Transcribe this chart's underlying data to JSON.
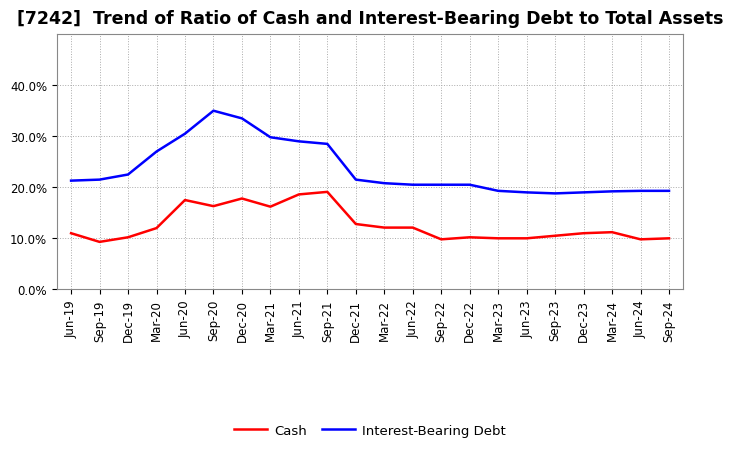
{
  "title": "[7242]  Trend of Ratio of Cash and Interest-Bearing Debt to Total Assets",
  "labels": [
    "Jun-19",
    "Sep-19",
    "Dec-19",
    "Mar-20",
    "Jun-20",
    "Sep-20",
    "Dec-20",
    "Mar-21",
    "Jun-21",
    "Sep-21",
    "Dec-21",
    "Mar-22",
    "Jun-22",
    "Sep-22",
    "Dec-22",
    "Mar-23",
    "Jun-23",
    "Sep-23",
    "Dec-23",
    "Mar-24",
    "Jun-24",
    "Sep-24"
  ],
  "cash": [
    0.11,
    0.093,
    0.102,
    0.12,
    0.175,
    0.163,
    0.178,
    0.162,
    0.186,
    0.191,
    0.128,
    0.121,
    0.121,
    0.098,
    0.102,
    0.1,
    0.1,
    0.105,
    0.11,
    0.112,
    0.098,
    0.1
  ],
  "interest_bearing_debt": [
    0.213,
    0.215,
    0.225,
    0.27,
    0.305,
    0.35,
    0.335,
    0.298,
    0.29,
    0.285,
    0.215,
    0.208,
    0.205,
    0.205,
    0.205,
    0.193,
    0.19,
    0.188,
    0.19,
    0.192,
    0.193,
    0.193
  ],
  "cash_color": "#ff0000",
  "debt_color": "#0000ff",
  "background_color": "#ffffff",
  "plot_bg_color": "#ffffff",
  "grid_color": "#aaaaaa",
  "ylim": [
    0.0,
    0.5
  ],
  "yticks": [
    0.0,
    0.1,
    0.2,
    0.3,
    0.4
  ],
  "legend_cash": "Cash",
  "legend_debt": "Interest-Bearing Debt",
  "title_fontsize": 12.5,
  "tick_fontsize": 8.5,
  "legend_fontsize": 9.5,
  "line_width": 1.8
}
